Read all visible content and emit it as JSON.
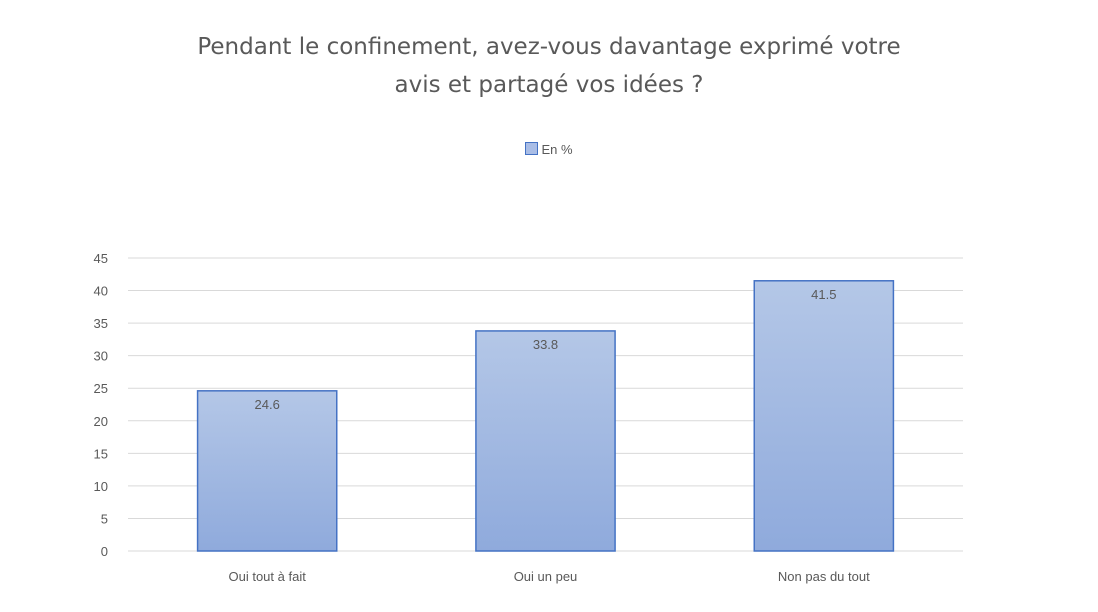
{
  "chart_data": {
    "type": "bar",
    "title_lines": [
      "Pendant le confinement, avez-vous davantage exprimé votre",
      "avis et partagé vos idées ?"
    ],
    "categories": [
      "Oui tout à fait",
      "Oui un peu",
      "Non pas du tout"
    ],
    "series": [
      {
        "name": "En %",
        "values": [
          24.6,
          33.8,
          41.5
        ]
      }
    ],
    "data_labels": [
      "24.6",
      "33.8",
      "41.5"
    ],
    "ylim": [
      0,
      45
    ],
    "yticks": [
      0,
      5,
      10,
      15,
      20,
      25,
      30,
      35,
      40,
      45
    ],
    "grid": true,
    "legend_position": "top",
    "colors": {
      "bar_fill_top": "#b4c7e7",
      "bar_fill_bottom": "#8faadc",
      "bar_edge": "#4472c4",
      "grid": "#d9d9d9",
      "text": "#595959"
    }
  }
}
